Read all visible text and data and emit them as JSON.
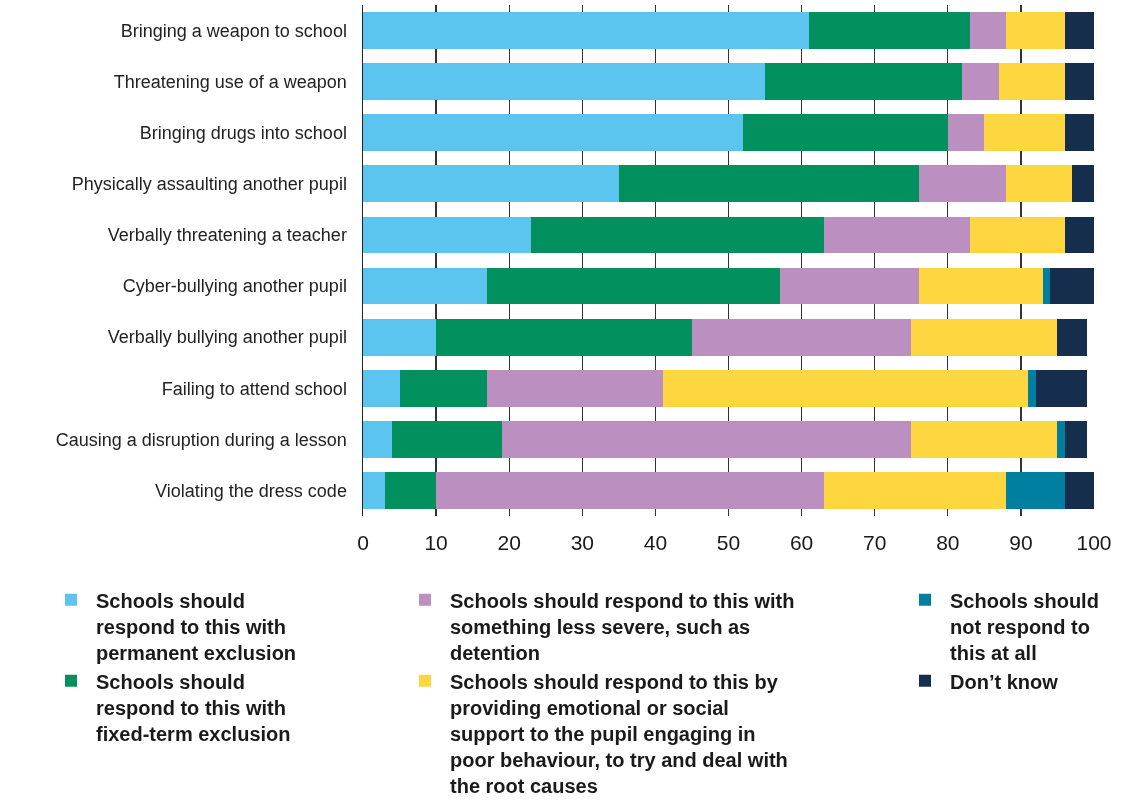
{
  "chart_data": {
    "type": "bar",
    "orientation": "horizontal",
    "stacked": true,
    "categories": [
      "Bringing a weapon to school",
      "Threatening use of a weapon",
      "Bringing drugs into school",
      "Physically assaulting another pupil",
      "Verbally threatening a teacher",
      "Cyber-bullying another pupil",
      "Verbally bullying another pupil",
      "Failing to attend school",
      "Causing a disruption during a lesson",
      "Violating the dress code"
    ],
    "series": [
      {
        "name": "Schools should respond to this with permanent exclusion",
        "color": "#5bc4ef",
        "values": [
          61,
          55,
          52,
          35,
          23,
          17,
          10,
          5,
          4,
          3
        ]
      },
      {
        "name": "Schools should respond to this with fixed-term exclusion",
        "color": "#02905f",
        "values": [
          22,
          27,
          28,
          41,
          40,
          40,
          35,
          12,
          15,
          7
        ]
      },
      {
        "name": "Schools should respond to this with something less severe, such as detention",
        "color": "#bc8fc1",
        "values": [
          5,
          5,
          5,
          12,
          20,
          19,
          30,
          24,
          56,
          53
        ]
      },
      {
        "name": "Schools should respond to this by providing emotional or social support to the pupil engaging in poor behaviour, to try and deal with the root causes",
        "color": "#fdd640",
        "values": [
          8,
          9,
          11,
          9,
          13,
          17,
          20,
          50,
          20,
          25
        ]
      },
      {
        "name": "Schools should not respond to this at all",
        "color": "#007fa0",
        "values": [
          0,
          0,
          0,
          0,
          0,
          1,
          0,
          1,
          1,
          8
        ]
      },
      {
        "name": "Don’t know",
        "color": "#162e4e",
        "values": [
          4,
          4,
          4,
          3,
          4,
          6,
          4,
          7,
          3,
          4
        ]
      }
    ],
    "xlim": [
      0,
      100
    ],
    "xticks": [
      0,
      10,
      20,
      30,
      40,
      50,
      60,
      70,
      80,
      90,
      100
    ],
    "grid": "x",
    "legend": "bottom"
  }
}
